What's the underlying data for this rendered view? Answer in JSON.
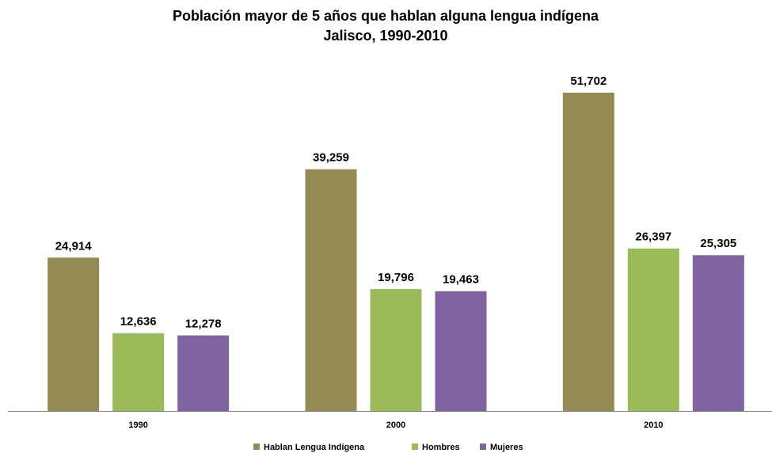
{
  "chart_data": {
    "type": "bar",
    "title": "Población mayor de 5 años que hablan alguna lengua indígena",
    "subtitle": "Jalisco, 1990-2010",
    "categories": [
      "1990",
      "2000",
      "2010"
    ],
    "series": [
      {
        "name": "Hablan Lengua Indígena",
        "color": "#948a54",
        "values": [
          24914,
          39259,
          51702
        ],
        "value_labels": [
          "24,914",
          "39,259",
          "51,702"
        ]
      },
      {
        "name": "Hombres",
        "color": "#9bbb59",
        "values": [
          12636,
          19796,
          26397
        ],
        "value_labels": [
          "12,636",
          "19,796",
          "26,397"
        ]
      },
      {
        "name": "Mujeres",
        "color": "#8064a2",
        "values": [
          12278,
          19463,
          25305
        ],
        "value_labels": [
          "12,278",
          "19,463",
          "25,305"
        ]
      }
    ]
  }
}
